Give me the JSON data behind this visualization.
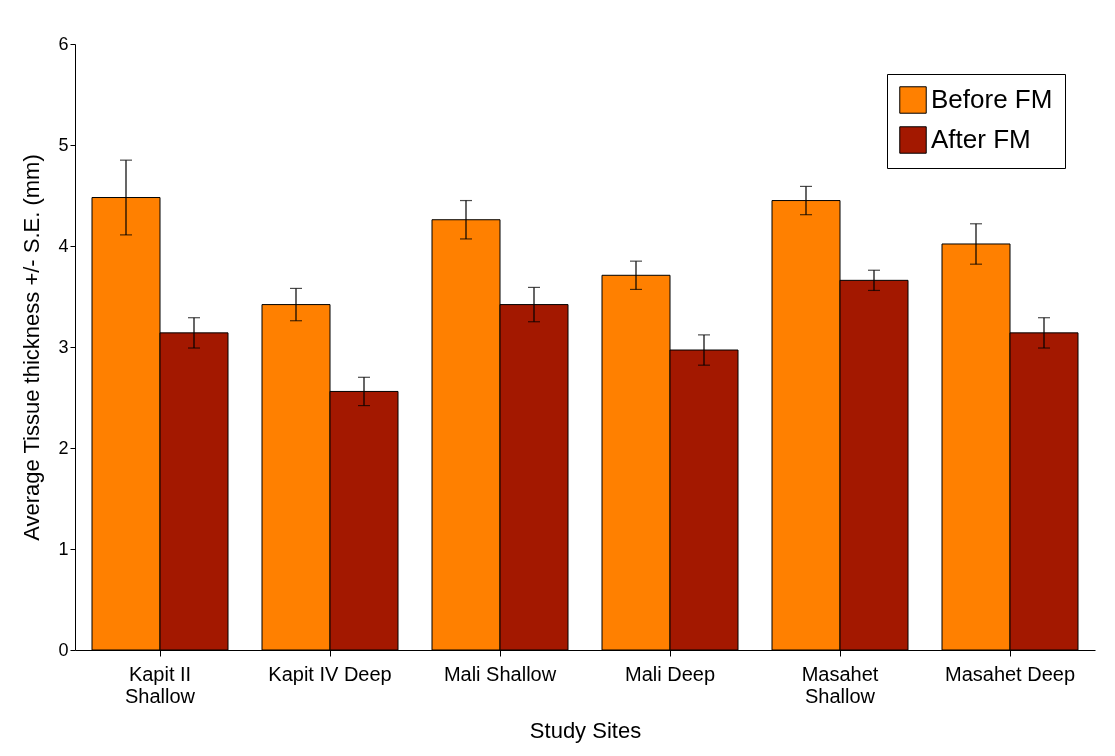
{
  "chart_data": {
    "type": "bar",
    "xlabel": "Study Sites",
    "ylabel": "Average Tissue thickness +/- S.E. (mm)",
    "categories": [
      "Kapit II\nShallow",
      "Kapit IV Deep",
      "Mali Shallow",
      "Mali Deep",
      "Masahet\nShallow",
      "Masahet Deep"
    ],
    "series": [
      {
        "name": "Before FM",
        "color": "#ff8000",
        "values": [
          4.48,
          3.42,
          4.26,
          3.71,
          4.45,
          4.02
        ],
        "errors": [
          0.37,
          0.16,
          0.19,
          0.14,
          0.14,
          0.2
        ]
      },
      {
        "name": "After FM",
        "color": "#a31800",
        "values": [
          3.14,
          2.56,
          3.42,
          2.97,
          3.66,
          3.14
        ],
        "errors": [
          0.15,
          0.14,
          0.17,
          0.15,
          0.1,
          0.15
        ]
      }
    ],
    "ylim": [
      0,
      6
    ],
    "yticks": [
      0,
      1,
      2,
      3,
      4,
      5,
      6
    ],
    "grid": false,
    "legend": "top right"
  }
}
